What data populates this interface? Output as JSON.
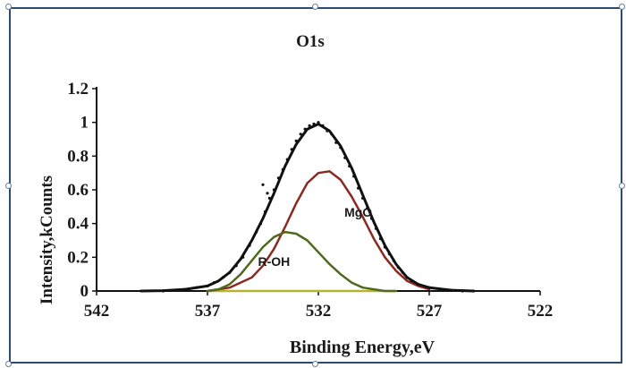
{
  "chart_data": {
    "type": "line",
    "title": "O1s",
    "xlabel": "Binding Energy,eV",
    "ylabel": "Intensity,kCounts",
    "xlim": [
      542,
      522
    ],
    "x_reversed": true,
    "ylim": [
      0,
      1.2
    ],
    "x_ticks": [
      "542",
      "537",
      "532",
      "527",
      "522"
    ],
    "y_ticks": [
      "0",
      "0.2",
      "0.4",
      "0.6",
      "0.8",
      "1",
      "1.2"
    ],
    "grid": false,
    "series": [
      {
        "name": "",
        "role": "envelope",
        "color": "#111111",
        "x": [
          540.0,
          539.0,
          538.0,
          537.0,
          536.5,
          536.0,
          535.5,
          535.0,
          534.5,
          534.0,
          533.5,
          533.0,
          532.5,
          532.0,
          531.5,
          531.0,
          530.5,
          530.0,
          529.5,
          529.0,
          528.5,
          528.0,
          527.5,
          527.0,
          526.0,
          525.0
        ],
        "y": [
          0.0,
          0.002,
          0.01,
          0.03,
          0.06,
          0.11,
          0.19,
          0.3,
          0.43,
          0.58,
          0.74,
          0.87,
          0.96,
          0.99,
          0.95,
          0.86,
          0.73,
          0.57,
          0.41,
          0.27,
          0.16,
          0.08,
          0.04,
          0.02,
          0.005,
          0.0
        ]
      },
      {
        "name": "MgO",
        "role": "component",
        "color": "#8b2a22",
        "x": [
          537.0,
          536.0,
          535.0,
          534.5,
          534.0,
          533.5,
          533.0,
          532.5,
          532.0,
          531.5,
          531.0,
          530.5,
          530.0,
          529.5,
          529.0,
          528.5,
          528.0,
          527.5,
          527.0
        ],
        "y": [
          0.0,
          0.02,
          0.08,
          0.15,
          0.25,
          0.38,
          0.52,
          0.64,
          0.7,
          0.71,
          0.66,
          0.56,
          0.44,
          0.31,
          0.2,
          0.12,
          0.06,
          0.03,
          0.01
        ]
      },
      {
        "name": "R-OH",
        "role": "component",
        "color": "#4f6a1f",
        "x": [
          537.0,
          536.5,
          536.0,
          535.5,
          535.0,
          534.5,
          534.0,
          533.5,
          533.0,
          532.5,
          532.0,
          531.5,
          531.0,
          530.5,
          530.0,
          529.5,
          529.0,
          528.5
        ],
        "y": [
          0.0,
          0.01,
          0.04,
          0.1,
          0.18,
          0.26,
          0.32,
          0.35,
          0.34,
          0.3,
          0.23,
          0.16,
          0.1,
          0.05,
          0.02,
          0.01,
          0.0,
          0.0
        ]
      },
      {
        "name": "",
        "role": "background",
        "color": "#b8b42e",
        "x": [
          537.0,
          528.5
        ],
        "y": [
          0.0,
          0.0
        ]
      }
    ],
    "scatter_points": [
      [
        539.0,
        0.0
      ],
      [
        538.5,
        0.005
      ],
      [
        538.0,
        0.01
      ],
      [
        537.5,
        0.02
      ],
      [
        537.0,
        0.03
      ],
      [
        536.7,
        0.05
      ],
      [
        536.3,
        0.08
      ],
      [
        536.0,
        0.11
      ],
      [
        535.7,
        0.15
      ],
      [
        535.4,
        0.2
      ],
      [
        535.1,
        0.27
      ],
      [
        534.8,
        0.35
      ],
      [
        534.6,
        0.4
      ],
      [
        534.4,
        0.47
      ],
      [
        534.2,
        0.55
      ],
      [
        534.0,
        0.6
      ],
      [
        534.5,
        0.63
      ],
      [
        534.3,
        0.58
      ],
      [
        533.8,
        0.67
      ],
      [
        533.6,
        0.72
      ],
      [
        533.4,
        0.78
      ],
      [
        533.2,
        0.84
      ],
      [
        533.0,
        0.89
      ],
      [
        532.8,
        0.93
      ],
      [
        532.6,
        0.96
      ],
      [
        532.4,
        0.98
      ],
      [
        532.2,
        0.99
      ],
      [
        532.0,
        1.0
      ],
      [
        531.8,
        0.98
      ],
      [
        531.6,
        0.95
      ],
      [
        531.4,
        0.93
      ],
      [
        531.2,
        0.88
      ],
      [
        531.0,
        0.85
      ],
      [
        530.8,
        0.79
      ],
      [
        530.6,
        0.74
      ],
      [
        530.4,
        0.68
      ],
      [
        530.2,
        0.61
      ],
      [
        530.0,
        0.55
      ],
      [
        529.8,
        0.49
      ],
      [
        529.6,
        0.43
      ],
      [
        529.4,
        0.37
      ],
      [
        529.2,
        0.31
      ],
      [
        529.0,
        0.26
      ],
      [
        528.8,
        0.22
      ],
      [
        528.6,
        0.18
      ],
      [
        528.4,
        0.14
      ],
      [
        528.2,
        0.11
      ],
      [
        528.0,
        0.08
      ],
      [
        527.8,
        0.06
      ],
      [
        527.5,
        0.04
      ],
      [
        527.0,
        0.02
      ],
      [
        526.5,
        0.01
      ],
      [
        526.0,
        0.005
      ],
      [
        525.5,
        0.0
      ],
      [
        525.0,
        0.0
      ]
    ],
    "annotations": [
      {
        "text": "MgO",
        "x": 530.2,
        "y": 0.44
      },
      {
        "text": "R-OH",
        "x": 534.0,
        "y": 0.15
      }
    ]
  }
}
